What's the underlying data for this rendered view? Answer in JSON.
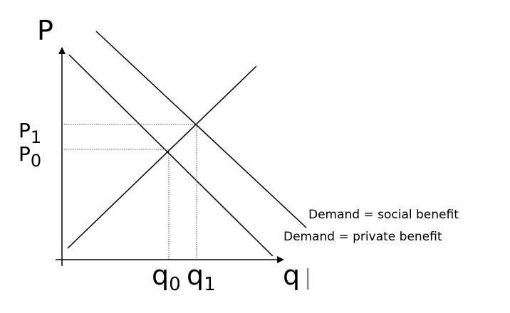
{
  "axes": {
    "y_label": "P",
    "x_label": "q",
    "x_label_suffix": "|"
  },
  "price_labels": {
    "p1_base": "P",
    "p1_sub": "1",
    "p0_base": "P",
    "p0_sub": "0"
  },
  "quantity_labels": {
    "q0_base": "q",
    "q0_sub": "0",
    "q1_base": "q",
    "q1_sub": "1"
  },
  "curves": {
    "social_demand_label": "Demand = social benefit",
    "private_demand_label": "Demand = private benefit",
    "supply_label": ""
  },
  "colors": {
    "line": "#000000",
    "guide": "#555555",
    "background": "#ffffff"
  }
}
